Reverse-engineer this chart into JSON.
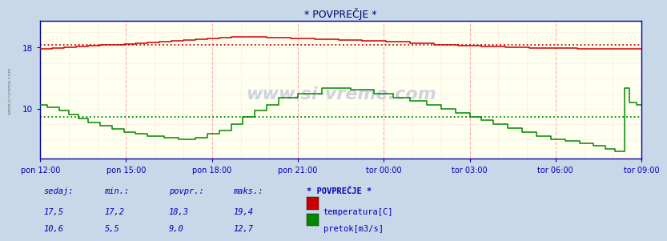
{
  "title": "* POVPREČJE *",
  "bg_color": "#c8d8e8",
  "plot_bg_color": "#fffff0",
  "grid_color_v": "#ffaaaa",
  "grid_color_h": "#ffcccc",
  "x_tick_labels": [
    "pon 12:00",
    "pon 15:00",
    "pon 18:00",
    "pon 21:00",
    "tor 00:00",
    "tor 03:00",
    "tor 06:00",
    "tor 09:00"
  ],
  "x_tick_positions": [
    0,
    36,
    72,
    108,
    144,
    180,
    216,
    252
  ],
  "y_ticks": [
    10,
    18
  ],
  "ylim": [
    3.5,
    21.5
  ],
  "xlim": [
    0,
    252
  ],
  "temp_color": "#cc0000",
  "flow_color": "#008800",
  "temp_avg_line": 18.3,
  "flow_avg_line": 9.0,
  "watermark_text": "www.si-vreme.com",
  "footer_headers": [
    "sedaj:",
    "min.:",
    "povpr.:",
    "maks.:"
  ],
  "footer_temp": [
    "17,5",
    "17,2",
    "18,3",
    "19,4"
  ],
  "footer_flow": [
    "10,6",
    "5,5",
    "9,0",
    "12,7"
  ],
  "legend_title": "* POVPREČJE *",
  "legend_items": [
    "temperatura[C]",
    "pretok[m3/s]"
  ],
  "footer_color": "#0000bb",
  "title_color": "#000066",
  "axis_label_color": "#0000bb",
  "border_color": "#0000aa",
  "sidebar_text": "www.si-vreme.com"
}
